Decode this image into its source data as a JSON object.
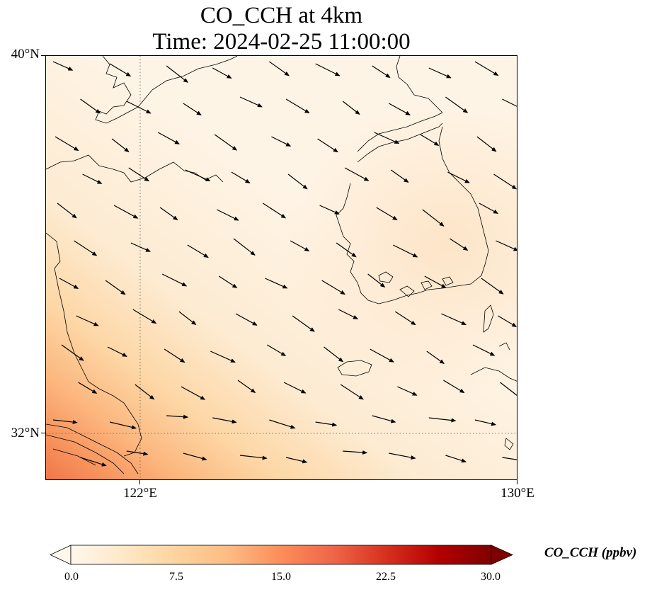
{
  "title": {
    "line1": "CO_CCH at 4km",
    "line2": "Time: 2024-02-25 11:00:00"
  },
  "map": {
    "lat_labels": [
      "40°N",
      "32°N"
    ],
    "lon_labels": [
      "122°E",
      "130°E"
    ],
    "extent": {
      "lon_min": 120,
      "lon_max": 130,
      "lat_min": 31,
      "lat_max": 40
    },
    "gridlines": {
      "lon": [
        122
      ],
      "lat": [
        32
      ],
      "style": "dotted"
    },
    "field_colormap": "OrRd",
    "coastline_color": "#000000",
    "wind_vector_color": "#000000",
    "wind_direction": "north-westerly (pointing east-south-east)"
  },
  "colorbar": {
    "label": "CO_CCH (ppbv)",
    "ticks": [
      "0.0",
      "7.5",
      "15.0",
      "22.5",
      "30.0"
    ],
    "range": [
      0,
      30
    ],
    "extend": "both",
    "colors": [
      "#fff7ec",
      "#fee8c8",
      "#fdd49e",
      "#fdbb84",
      "#fc8d59",
      "#ef6548",
      "#d7301f",
      "#b30000",
      "#7f0000"
    ]
  }
}
